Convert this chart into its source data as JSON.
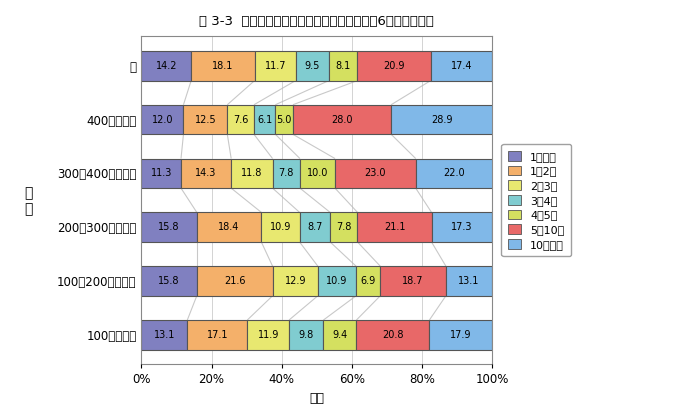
{
  "title": "図 3-3  本人の年収と延滞年数との関係（延滞6ヶ月以上者）",
  "xlabel": "割合",
  "ylabel": "年\n収",
  "categories": [
    "計",
    "400万円以上",
    "300～400万円未満",
    "200～300万円未満",
    "100～200万円未満",
    "100万円未満"
  ],
  "series_labels": [
    "1年未満",
    "1～2年",
    "2～3年",
    "3～4年",
    "4～5年",
    "5～10年",
    "10年以上"
  ],
  "colors": [
    "#8080c0",
    "#f4b06a",
    "#e8e870",
    "#80ccd0",
    "#d4e060",
    "#e86868",
    "#80b8e8"
  ],
  "data": [
    [
      14.2,
      18.1,
      11.7,
      9.5,
      8.1,
      20.9,
      17.4
    ],
    [
      12.0,
      12.5,
      7.6,
      6.1,
      5.0,
      28.0,
      28.9
    ],
    [
      11.3,
      14.3,
      11.8,
      7.8,
      10.0,
      23.0,
      22.0
    ],
    [
      15.8,
      18.4,
      10.9,
      8.7,
      7.8,
      21.1,
      17.3
    ],
    [
      15.8,
      21.6,
      12.9,
      10.9,
      6.9,
      18.7,
      13.1
    ],
    [
      13.1,
      17.1,
      11.9,
      9.8,
      9.4,
      20.8,
      17.9
    ]
  ],
  "xticks": [
    0,
    20,
    40,
    60,
    80,
    100
  ],
  "xtick_labels": [
    "0%",
    "20%",
    "40%",
    "60%",
    "80%",
    "100%"
  ],
  "background_color": "#ffffff",
  "bar_height": 0.55,
  "figsize": [
    7.0,
    4.2
  ],
  "dpi": 100
}
